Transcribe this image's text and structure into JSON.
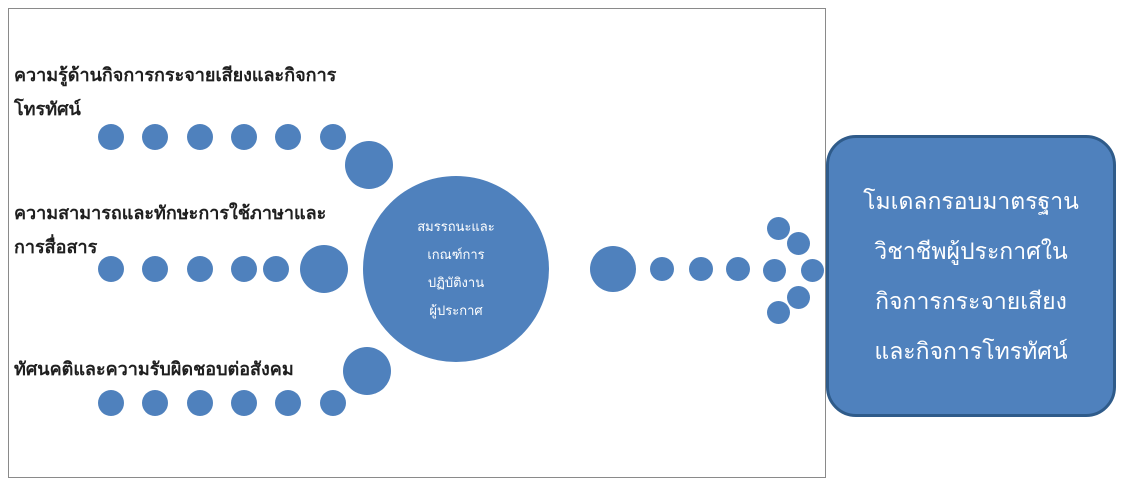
{
  "inputs": [
    {
      "label": "ความรู้ด้านกิจการกระจายเสียงและกิจการ\nโทรทัศน์"
    },
    {
      "label": "ความสามารถและทักษะการใช้ภาษาและ\nการสื่อสาร"
    },
    {
      "label": "ทัศนคติและความรับผิดชอบต่อสังคม"
    }
  ],
  "center": {
    "text": "สมรรถนะและ\nเกณฑ์การ\nปฏิบัติงาน\nผู้ประกาศ"
  },
  "result": {
    "text": "โมเดลกรอบมาตรฐาน\nวิชาชีพผู้ประกาศใน\nกิจการกระจายเสียง\nและกิจการโทรทัศน์"
  },
  "colors": {
    "node": "#4f81bd",
    "box_border": "#2f5b8a",
    "frame": "#8a8a8a"
  }
}
